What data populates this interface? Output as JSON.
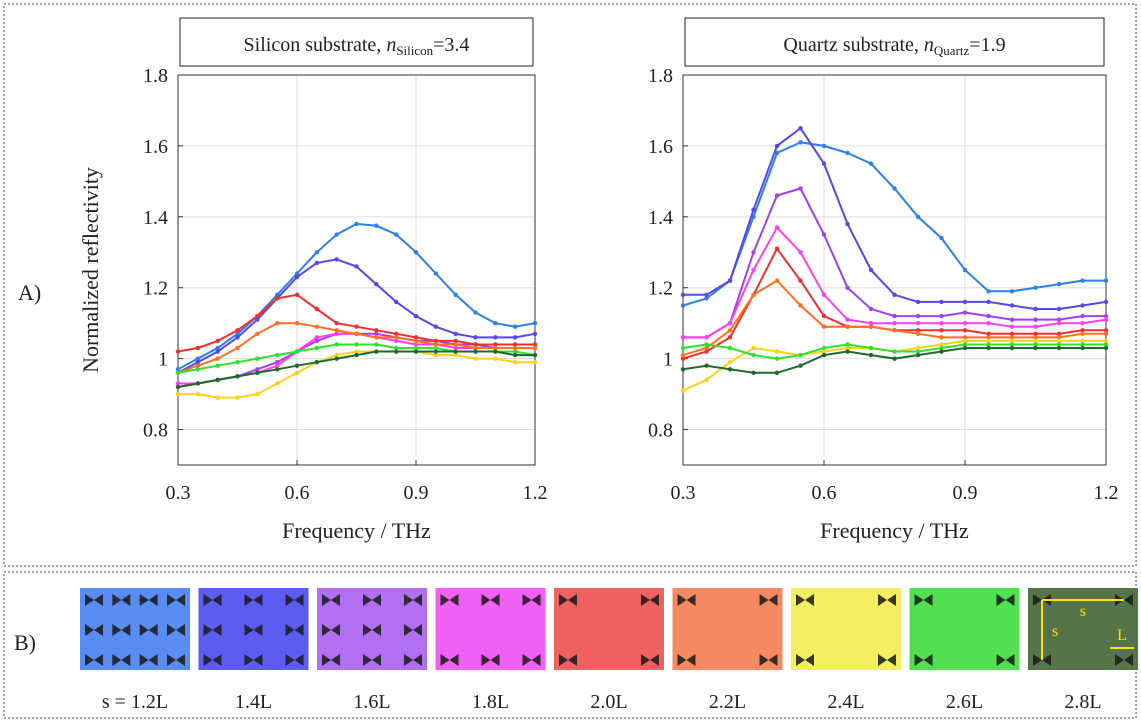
{
  "chart_data": [
    {
      "type": "line",
      "title": "Silicon substrate, ",
      "title_symbol": "n",
      "title_subscript": "Silicon",
      "title_value": "=3.4",
      "xlabel": "Frequency / THz",
      "ylabel": "Normalized reflectivity",
      "xlim": [
        0.3,
        1.2
      ],
      "ylim": [
        0.7,
        1.8
      ],
      "xticks": [
        0.3,
        0.6,
        0.9,
        1.2
      ],
      "yticks": [
        0.8,
        1,
        1.2,
        1.4,
        1.6,
        1.8
      ],
      "grid": true,
      "x": [
        0.3,
        0.35,
        0.4,
        0.45,
        0.5,
        0.55,
        0.6,
        0.65,
        0.7,
        0.75,
        0.8,
        0.85,
        0.9,
        0.95,
        1.0,
        1.05,
        1.1,
        1.15,
        1.2
      ],
      "series": [
        {
          "color": "#2f7fe8",
          "values": [
            0.97,
            1.0,
            1.03,
            1.07,
            1.12,
            1.18,
            1.24,
            1.3,
            1.35,
            1.38,
            1.375,
            1.35,
            1.3,
            1.24,
            1.18,
            1.13,
            1.1,
            1.09,
            1.1
          ]
        },
        {
          "color": "#5548e8",
          "values": [
            0.96,
            0.99,
            1.02,
            1.06,
            1.11,
            1.17,
            1.23,
            1.27,
            1.28,
            1.26,
            1.21,
            1.16,
            1.12,
            1.09,
            1.07,
            1.06,
            1.06,
            1.06,
            1.07
          ]
        },
        {
          "color": "#a040f0",
          "values": [
            0.92,
            0.93,
            0.94,
            0.95,
            0.97,
            0.99,
            1.02,
            1.05,
            1.07,
            1.07,
            1.07,
            1.06,
            1.05,
            1.05,
            1.04,
            1.04,
            1.03,
            1.03,
            1.03
          ]
        },
        {
          "color": "#ff40f0",
          "values": [
            0.93,
            0.93,
            0.94,
            0.95,
            0.96,
            0.98,
            1.02,
            1.06,
            1.07,
            1.07,
            1.06,
            1.05,
            1.04,
            1.04,
            1.03,
            1.03,
            1.03,
            1.03,
            1.03
          ]
        },
        {
          "color": "#f03030",
          "values": [
            1.02,
            1.03,
            1.05,
            1.08,
            1.12,
            1.17,
            1.18,
            1.14,
            1.1,
            1.09,
            1.08,
            1.07,
            1.06,
            1.05,
            1.05,
            1.04,
            1.04,
            1.04,
            1.04
          ]
        },
        {
          "color": "#ff7020",
          "values": [
            0.96,
            0.98,
            1.0,
            1.03,
            1.07,
            1.1,
            1.1,
            1.09,
            1.08,
            1.07,
            1.06,
            1.06,
            1.05,
            1.04,
            1.04,
            1.03,
            1.03,
            1.03,
            1.03
          ]
        },
        {
          "color": "#ffd020",
          "values": [
            0.9,
            0.9,
            0.89,
            0.89,
            0.9,
            0.93,
            0.96,
            0.99,
            1.01,
            1.02,
            1.02,
            1.02,
            1.02,
            1.01,
            1.01,
            1.0,
            1.0,
            0.99,
            0.99
          ]
        },
        {
          "color": "#30e030",
          "values": [
            0.96,
            0.97,
            0.98,
            0.99,
            1.0,
            1.01,
            1.02,
            1.03,
            1.04,
            1.04,
            1.04,
            1.03,
            1.03,
            1.03,
            1.02,
            1.02,
            1.02,
            1.02,
            1.01
          ]
        },
        {
          "color": "#1f6a2a",
          "values": [
            0.92,
            0.93,
            0.94,
            0.95,
            0.96,
            0.97,
            0.98,
            0.99,
            1.0,
            1.01,
            1.02,
            1.02,
            1.02,
            1.02,
            1.02,
            1.02,
            1.02,
            1.01,
            1.01
          ]
        }
      ]
    },
    {
      "type": "line",
      "title": "Quartz substrate, ",
      "title_symbol": "n",
      "title_subscript": "Quartz",
      "title_value": "=1.9",
      "xlabel": "Frequency / THz",
      "xlim": [
        0.3,
        1.2
      ],
      "ylim": [
        0.7,
        1.8
      ],
      "xticks": [
        0.3,
        0.6,
        0.9,
        1.2
      ],
      "yticks": [
        0.8,
        1,
        1.2,
        1.4,
        1.6,
        1.8
      ],
      "grid": true,
      "x": [
        0.3,
        0.35,
        0.4,
        0.45,
        0.5,
        0.55,
        0.6,
        0.65,
        0.7,
        0.75,
        0.8,
        0.85,
        0.9,
        0.95,
        1.0,
        1.05,
        1.1,
        1.15,
        1.2
      ],
      "series": [
        {
          "color": "#2f7fe8",
          "values": [
            1.15,
            1.17,
            1.22,
            1.4,
            1.58,
            1.61,
            1.6,
            1.58,
            1.55,
            1.48,
            1.4,
            1.34,
            1.25,
            1.19,
            1.19,
            1.2,
            1.21,
            1.22,
            1.22
          ]
        },
        {
          "color": "#5548e8",
          "values": [
            1.18,
            1.18,
            1.22,
            1.42,
            1.6,
            1.65,
            1.55,
            1.38,
            1.25,
            1.18,
            1.16,
            1.16,
            1.16,
            1.16,
            1.15,
            1.14,
            1.14,
            1.15,
            1.16
          ]
        },
        {
          "color": "#a040f0",
          "values": [
            1.06,
            1.06,
            1.1,
            1.3,
            1.46,
            1.48,
            1.35,
            1.2,
            1.14,
            1.12,
            1.12,
            1.12,
            1.13,
            1.12,
            1.11,
            1.11,
            1.11,
            1.12,
            1.12
          ]
        },
        {
          "color": "#ff40f0",
          "values": [
            1.06,
            1.06,
            1.1,
            1.25,
            1.37,
            1.3,
            1.18,
            1.11,
            1.1,
            1.1,
            1.1,
            1.1,
            1.1,
            1.1,
            1.09,
            1.09,
            1.1,
            1.1,
            1.11
          ]
        },
        {
          "color": "#f03030",
          "values": [
            1.0,
            1.02,
            1.06,
            1.18,
            1.31,
            1.22,
            1.12,
            1.09,
            1.09,
            1.08,
            1.08,
            1.08,
            1.08,
            1.07,
            1.07,
            1.07,
            1.07,
            1.08,
            1.08
          ]
        },
        {
          "color": "#ff7020",
          "values": [
            1.01,
            1.03,
            1.08,
            1.18,
            1.22,
            1.15,
            1.09,
            1.09,
            1.09,
            1.08,
            1.07,
            1.06,
            1.06,
            1.06,
            1.06,
            1.06,
            1.06,
            1.07,
            1.07
          ]
        },
        {
          "color": "#ffd020",
          "values": [
            0.91,
            0.94,
            0.99,
            1.03,
            1.02,
            1.01,
            1.02,
            1.03,
            1.03,
            1.02,
            1.03,
            1.04,
            1.05,
            1.05,
            1.05,
            1.05,
            1.05,
            1.05,
            1.05
          ]
        },
        {
          "color": "#30e030",
          "values": [
            1.03,
            1.04,
            1.03,
            1.01,
            1.0,
            1.01,
            1.03,
            1.04,
            1.03,
            1.02,
            1.02,
            1.03,
            1.04,
            1.04,
            1.04,
            1.04,
            1.04,
            1.04,
            1.04
          ]
        },
        {
          "color": "#1f6a2a",
          "values": [
            0.97,
            0.98,
            0.97,
            0.96,
            0.96,
            0.98,
            1.01,
            1.02,
            1.01,
            1.0,
            1.01,
            1.02,
            1.03,
            1.03,
            1.03,
            1.03,
            1.03,
            1.03,
            1.03
          ]
        }
      ]
    }
  ],
  "panel_a": {
    "label": "A)"
  },
  "panel_b": {
    "label": "B)",
    "items": [
      {
        "label": "s = 1.2L",
        "color": "#5a8cf2"
      },
      {
        "label": "1.4L",
        "color": "#5c5cf0"
      },
      {
        "label": "1.6L",
        "color": "#b070f0"
      },
      {
        "label": "1.8L",
        "color": "#f060f2"
      },
      {
        "label": "2.0L",
        "color": "#f06262"
      },
      {
        "label": "2.2L",
        "color": "#f58a62"
      },
      {
        "label": "2.4L",
        "color": "#f2f062"
      },
      {
        "label": "2.6L",
        "color": "#52e052"
      },
      {
        "label": "2.8L",
        "color": "#55744a"
      }
    ],
    "annotations": {
      "s_horizontal": "s",
      "s_vertical": "s",
      "length": "L"
    }
  }
}
